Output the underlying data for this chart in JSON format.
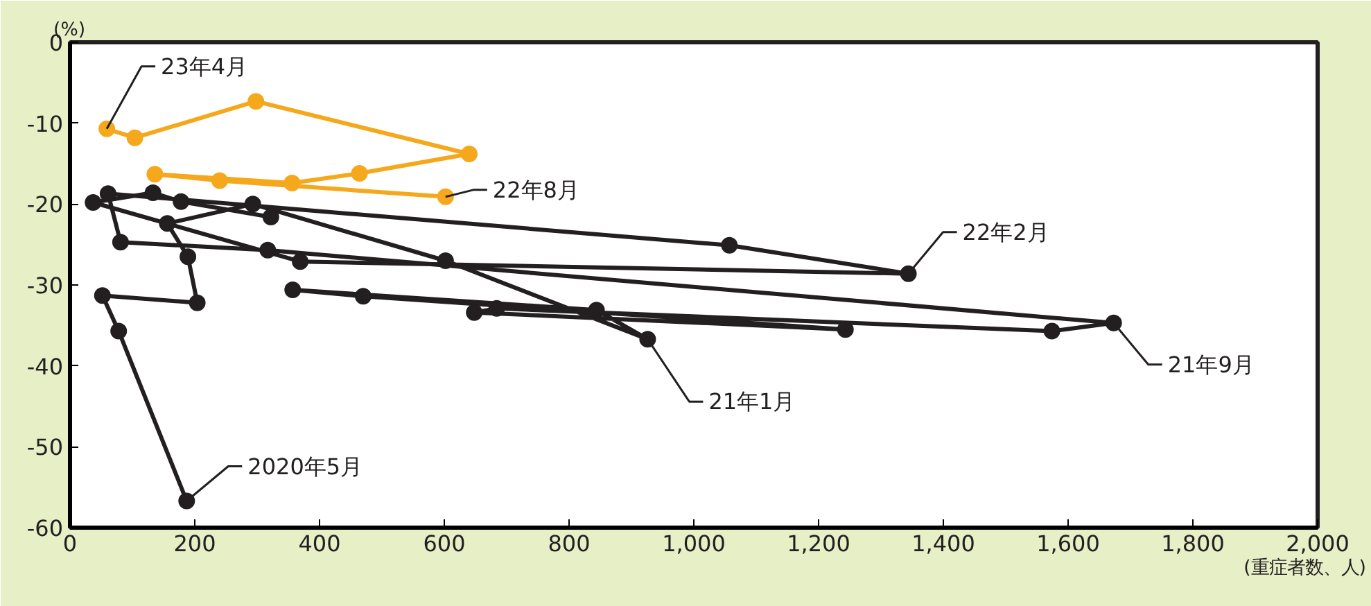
{
  "chart_data": {
    "type": "line",
    "marker": "circle",
    "line_style": "solid",
    "grid": false,
    "ylabel": "(%)",
    "xlabel": "(重症者数、人)",
    "xlim": [
      0,
      2000
    ],
    "ylim": [
      -60,
      0
    ],
    "xticks": [
      0,
      200,
      400,
      600,
      800,
      {
        "value": 1000,
        "label": "1,000"
      },
      {
        "value": 1200,
        "label": "1,200"
      },
      {
        "value": 1400,
        "label": "1,400"
      },
      {
        "value": 1600,
        "label": "1,600"
      },
      {
        "value": 1800,
        "label": "1,800"
      },
      {
        "value": 2000,
        "label": "2,000"
      }
    ],
    "yticks": [
      0,
      -10,
      -20,
      -30,
      -40,
      -50,
      -60
    ],
    "series": [
      {
        "color": "#231f20",
        "x": [
          187,
          78,
          52,
          204,
          189,
          156,
          293,
          602,
          926,
          844,
          357,
          470,
          1243,
          648,
          684,
          1574,
          1673,
          317,
          81,
          61,
          1057,
          1344,
          369,
          37,
          133,
          178,
          322
        ],
        "values": [
          -56.7,
          -35.7,
          -31.3,
          -32.2,
          -26.5,
          -22.4,
          -20.0,
          -27.0,
          -36.7,
          -33.1,
          -30.6,
          -31.4,
          -35.5,
          -33.4,
          -32.9,
          -35.7,
          -34.7,
          -25.7,
          -24.7,
          -18.7,
          -25.1,
          -28.6,
          -27.1,
          -19.8,
          -18.6,
          -19.7,
          -21.6
        ]
      },
      {
        "color": "#f5a81c",
        "x": [
          602,
          240,
          136,
          356,
          464,
          640,
          298,
          104,
          59
        ],
        "values": [
          -19.1,
          -17.1,
          -16.3,
          -17.4,
          -16.2,
          -13.8,
          -7.3,
          -11.8,
          -10.7
        ]
      }
    ],
    "annotations": [
      {
        "text": "2020年5月",
        "x": 187,
        "y": -56.7
      },
      {
        "text": "21年1月",
        "x": 926,
        "y": -36.7
      },
      {
        "text": "21年9月",
        "x": 1673,
        "y": -34.7
      },
      {
        "text": "22年2月",
        "x": 1344,
        "y": -28.6
      },
      {
        "text": "22年8月",
        "x": 602,
        "y": -19.1
      },
      {
        "text": "23年4月",
        "x": 59,
        "y": -10.7
      }
    ]
  }
}
